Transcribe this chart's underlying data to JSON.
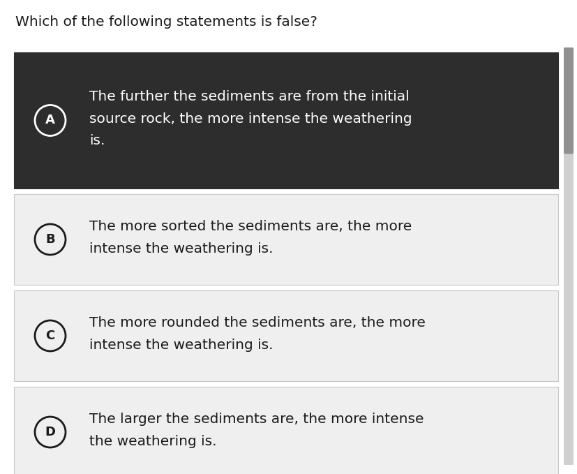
{
  "question": "Which of the following statements is false?",
  "question_fontsize": 14.5,
  "question_color": "#1a1a1a",
  "bg_color": "#ffffff",
  "options": [
    {
      "label": "A",
      "text_lines": [
        "The further the sediments are from the initial",
        "source rock, the more intense the weathering",
        "is."
      ],
      "bg_color": "#2d2d2d",
      "text_color": "#ffffff",
      "label_bg": "#2d2d2d",
      "label_color": "#ffffff",
      "label_border": "#ffffff",
      "selected": true
    },
    {
      "label": "B",
      "text_lines": [
        "The more sorted the sediments are, the more",
        "intense the weathering is."
      ],
      "bg_color": "#efefef",
      "text_color": "#1a1a1a",
      "label_bg": "#efefef",
      "label_color": "#1a1a1a",
      "label_border": "#1a1a1a",
      "selected": false
    },
    {
      "label": "C",
      "text_lines": [
        "The more rounded the sediments are, the more",
        "intense the weathering is."
      ],
      "bg_color": "#efefef",
      "text_color": "#1a1a1a",
      "label_bg": "#efefef",
      "label_color": "#1a1a1a",
      "label_border": "#1a1a1a",
      "selected": false
    },
    {
      "label": "D",
      "text_lines": [
        "The larger the sediments are, the more intense",
        "the weathering is."
      ],
      "bg_color": "#efefef",
      "text_color": "#1a1a1a",
      "label_bg": "#efefef",
      "label_color": "#1a1a1a",
      "label_border": "#1a1a1a",
      "selected": false
    }
  ],
  "option_text_fontsize": 14.5,
  "label_fontsize": 13,
  "scrollbar_color": "#d0d0d0",
  "scrollbar_indicator_color": "#909090"
}
